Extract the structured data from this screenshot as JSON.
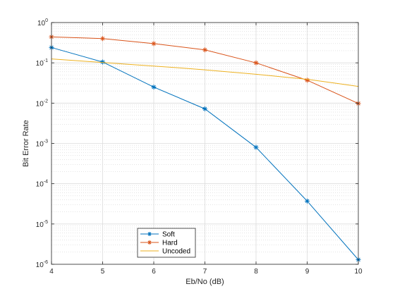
{
  "chart_data": {
    "type": "line",
    "title": "",
    "xlabel": "Eb/No (dB)",
    "ylabel": "Bit Error Rate",
    "xlim": [
      4,
      10
    ],
    "ylim": [
      1e-06,
      1
    ],
    "yscale": "log",
    "grid": true,
    "minor_grid": true,
    "legend_position": "bottom-left",
    "x_ticks": [
      4,
      5,
      6,
      7,
      8,
      9,
      10
    ],
    "y_ticks": [
      {
        "base": "10",
        "exp": "0"
      },
      {
        "base": "10",
        "exp": "-1"
      },
      {
        "base": "10",
        "exp": "-2"
      },
      {
        "base": "10",
        "exp": "-3"
      },
      {
        "base": "10",
        "exp": "-4"
      },
      {
        "base": "10",
        "exp": "-5"
      },
      {
        "base": "10",
        "exp": "-6"
      }
    ],
    "series": [
      {
        "name": "Soft",
        "color": "#0072BD",
        "marker": "asterisk",
        "x": [
          4,
          5,
          6,
          7,
          8,
          9,
          10
        ],
        "y": [
          0.24,
          0.105,
          0.025,
          0.0072,
          0.0008,
          3.7e-05,
          1.3e-06
        ]
      },
      {
        "name": "Hard",
        "color": "#D95319",
        "marker": "asterisk",
        "x": [
          4,
          5,
          6,
          7,
          8,
          9,
          10
        ],
        "y": [
          0.44,
          0.4,
          0.3,
          0.21,
          0.1,
          0.037,
          0.0098
        ]
      },
      {
        "name": "Uncoded",
        "color": "#EDB120",
        "marker": "none",
        "x": [
          4,
          4.5,
          5,
          5.5,
          6,
          6.5,
          7,
          7.5,
          8,
          8.5,
          9,
          9.5,
          10
        ],
        "y": [
          0.125,
          0.113,
          0.102,
          0.092,
          0.083,
          0.075,
          0.067,
          0.059,
          0.052,
          0.045,
          0.039,
          0.032,
          0.026
        ]
      }
    ]
  }
}
